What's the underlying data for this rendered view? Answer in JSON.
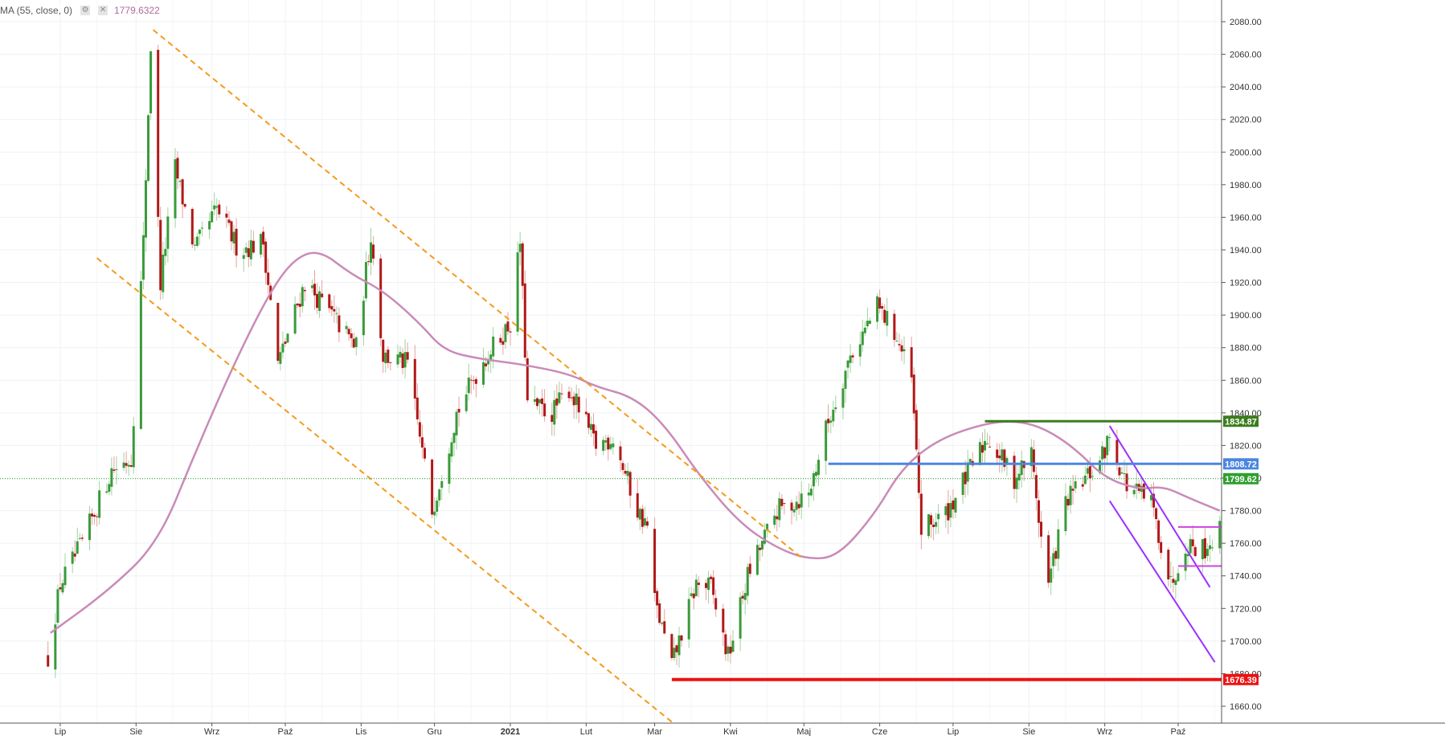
{
  "indicator": {
    "name": "MA (55, close, 0)",
    "value": "1779.6322",
    "settings_icon": "gear-icon",
    "close_icon": "close-icon",
    "color": "#c98bb8"
  },
  "chart_data": {
    "type": "candlestick",
    "x_labels": [
      "Lip",
      "Sie",
      "Wrz",
      "Paź",
      "Lis",
      "Gru",
      "2021",
      "Lut",
      "Mar",
      "Kwi",
      "Maj",
      "Cze",
      "Lip",
      "Sie",
      "Wrz",
      "Paź"
    ],
    "y_ticks": [
      1660,
      1680,
      1700,
      1720,
      1740,
      1760,
      1780,
      1800,
      1820,
      1840,
      1860,
      1880,
      1900,
      1920,
      1940,
      1960,
      1980,
      2000,
      2020,
      2040,
      2060,
      2080
    ],
    "ylim": [
      1647,
      2088
    ],
    "grid": true,
    "up_color": "#3a9a3a",
    "down_color": "#b01818",
    "ma_color": "#c98bb8",
    "ma_key_points": [
      {
        "date": "2020-06-27",
        "value": 1705
      },
      {
        "date": "2020-07-20",
        "value": 1730
      },
      {
        "date": "2020-08-10",
        "value": 1760
      },
      {
        "date": "2020-08-25",
        "value": 1815
      },
      {
        "date": "2020-09-10",
        "value": 1870
      },
      {
        "date": "2020-09-25",
        "value": 1915
      },
      {
        "date": "2020-10-05",
        "value": 1935
      },
      {
        "date": "2020-10-15",
        "value": 1940
      },
      {
        "date": "2020-10-28",
        "value": 1925
      },
      {
        "date": "2020-11-10",
        "value": 1915
      },
      {
        "date": "2020-11-25",
        "value": 1895
      },
      {
        "date": "2020-12-05",
        "value": 1878
      },
      {
        "date": "2020-12-20",
        "value": 1873
      },
      {
        "date": "2021-01-05",
        "value": 1870
      },
      {
        "date": "2021-01-25",
        "value": 1864
      },
      {
        "date": "2021-02-05",
        "value": 1856
      },
      {
        "date": "2021-02-20",
        "value": 1850
      },
      {
        "date": "2021-03-05",
        "value": 1833
      },
      {
        "date": "2021-03-20",
        "value": 1800
      },
      {
        "date": "2021-04-05",
        "value": 1772
      },
      {
        "date": "2021-04-20",
        "value": 1757
      },
      {
        "date": "2021-05-03",
        "value": 1750
      },
      {
        "date": "2021-05-15",
        "value": 1752
      },
      {
        "date": "2021-05-30",
        "value": 1778
      },
      {
        "date": "2021-06-10",
        "value": 1806
      },
      {
        "date": "2021-06-25",
        "value": 1824
      },
      {
        "date": "2021-07-15",
        "value": 1834
      },
      {
        "date": "2021-07-28",
        "value": 1835
      },
      {
        "date": "2021-08-08",
        "value": 1830
      },
      {
        "date": "2021-08-20",
        "value": 1818
      },
      {
        "date": "2021-09-01",
        "value": 1800
      },
      {
        "date": "2021-09-15",
        "value": 1793
      },
      {
        "date": "2021-09-25",
        "value": 1795
      },
      {
        "date": "2021-10-05",
        "value": 1788
      },
      {
        "date": "2021-10-18",
        "value": 1780
      }
    ],
    "candle_key_points": [
      {
        "date": "2020-06-26",
        "value": 1690
      },
      {
        "date": "2020-07-01",
        "value": 1735
      },
      {
        "date": "2020-07-10",
        "value": 1760
      },
      {
        "date": "2020-07-22",
        "value": 1805
      },
      {
        "date": "2020-07-30",
        "value": 1812
      },
      {
        "date": "2020-08-04",
        "value": 1945
      },
      {
        "date": "2020-08-07",
        "value": 2065
      },
      {
        "date": "2020-08-11",
        "value": 1920
      },
      {
        "date": "2020-08-17",
        "value": 1990
      },
      {
        "date": "2020-08-25",
        "value": 1940
      },
      {
        "date": "2020-09-03",
        "value": 1965
      },
      {
        "date": "2020-09-12",
        "value": 1940
      },
      {
        "date": "2020-09-22",
        "value": 1945
      },
      {
        "date": "2020-09-28",
        "value": 1870
      },
      {
        "date": "2020-10-09",
        "value": 1920
      },
      {
        "date": "2020-10-20",
        "value": 1900
      },
      {
        "date": "2020-10-30",
        "value": 1880
      },
      {
        "date": "2020-11-05",
        "value": 1950
      },
      {
        "date": "2020-11-10",
        "value": 1875
      },
      {
        "date": "2020-11-20",
        "value": 1870
      },
      {
        "date": "2020-11-30",
        "value": 1780
      },
      {
        "date": "2020-12-10",
        "value": 1840
      },
      {
        "date": "2020-12-20",
        "value": 1870
      },
      {
        "date": "2021-01-01",
        "value": 1895
      },
      {
        "date": "2021-01-05",
        "value": 1945
      },
      {
        "date": "2021-01-08",
        "value": 1845
      },
      {
        "date": "2021-01-18",
        "value": 1840
      },
      {
        "date": "2021-01-25",
        "value": 1855
      },
      {
        "date": "2021-02-05",
        "value": 1820
      },
      {
        "date": "2021-02-12",
        "value": 1825
      },
      {
        "date": "2021-02-22",
        "value": 1780
      },
      {
        "date": "2021-02-26",
        "value": 1770
      },
      {
        "date": "2021-03-01",
        "value": 1725
      },
      {
        "date": "2021-03-08",
        "value": 1685
      },
      {
        "date": "2021-03-18",
        "value": 1735
      },
      {
        "date": "2021-03-24",
        "value": 1733
      },
      {
        "date": "2021-03-31",
        "value": 1690
      },
      {
        "date": "2021-04-08",
        "value": 1740
      },
      {
        "date": "2021-04-20",
        "value": 1780
      },
      {
        "date": "2021-05-03",
        "value": 1790
      },
      {
        "date": "2021-05-10",
        "value": 1830
      },
      {
        "date": "2021-05-20",
        "value": 1875
      },
      {
        "date": "2021-05-31",
        "value": 1905
      },
      {
        "date": "2021-06-07",
        "value": 1890
      },
      {
        "date": "2021-06-14",
        "value": 1860
      },
      {
        "date": "2021-06-18",
        "value": 1768
      },
      {
        "date": "2021-06-28",
        "value": 1778
      },
      {
        "date": "2021-07-06",
        "value": 1800
      },
      {
        "date": "2021-07-15",
        "value": 1825
      },
      {
        "date": "2021-07-26",
        "value": 1800
      },
      {
        "date": "2021-08-02",
        "value": 1815
      },
      {
        "date": "2021-08-06",
        "value": 1763
      },
      {
        "date": "2021-08-09",
        "value": 1735
      },
      {
        "date": "2021-08-16",
        "value": 1785
      },
      {
        "date": "2021-08-30",
        "value": 1810
      },
      {
        "date": "2021-09-03",
        "value": 1825
      },
      {
        "date": "2021-09-10",
        "value": 1795
      },
      {
        "date": "2021-09-20",
        "value": 1785
      },
      {
        "date": "2021-09-28",
        "value": 1735
      },
      {
        "date": "2021-10-04",
        "value": 1760
      },
      {
        "date": "2021-10-12",
        "value": 1757
      },
      {
        "date": "2021-10-18",
        "value": 1768
      },
      {
        "date": "2021-10-21",
        "value": 1800
      }
    ],
    "horizontal_levels": [
      {
        "name": "resistance",
        "value": 1834.87,
        "label": "1834.87",
        "color": "#3a7d1e",
        "from_date": "2021-07-14"
      },
      {
        "name": "mid-level",
        "value": 1808.72,
        "label": "1808.72",
        "color": "#4a86e0",
        "from_date": "2021-05-11"
      },
      {
        "name": "support",
        "value": 1676.39,
        "label": "1676.39",
        "color": "#ee1111",
        "from_date": "2021-03-08"
      }
    ],
    "last_price": {
      "value": 1799.62,
      "label": "1799.62",
      "color": "#2f9e2f"
    },
    "trendlines": [
      {
        "name": "channel-upper",
        "color": "#f59a1a",
        "style": "dashed",
        "p1": {
          "date": "2020-08-08",
          "value": 2075
        },
        "p2": {
          "date": "2021-05-01",
          "value": 1750
        }
      },
      {
        "name": "channel-lower",
        "color": "#f59a1a",
        "style": "dashed",
        "p1": {
          "date": "2020-07-16",
          "value": 1935
        },
        "p2": {
          "date": "2021-03-10",
          "value": 1648
        }
      },
      {
        "name": "wedge-upper",
        "color": "#9b30ff",
        "style": "solid",
        "p1": {
          "date": "2021-09-03",
          "value": 1832
        },
        "p2": {
          "date": "2021-10-14",
          "value": 1733
        }
      },
      {
        "name": "wedge-lower",
        "color": "#9b30ff",
        "style": "solid",
        "p1": {
          "date": "2021-09-03",
          "value": 1786
        },
        "p2": {
          "date": "2021-10-16",
          "value": 1687
        }
      },
      {
        "name": "flag-top",
        "color": "#cc44dd",
        "style": "solid",
        "p1": {
          "date": "2021-10-01",
          "value": 1770
        },
        "p2": {
          "date": "2021-10-20",
          "value": 1770
        }
      },
      {
        "name": "flag-bottom",
        "color": "#cc44dd",
        "style": "solid",
        "p1": {
          "date": "2021-10-01",
          "value": 1746
        },
        "p2": {
          "date": "2021-10-20",
          "value": 1746
        }
      }
    ]
  }
}
